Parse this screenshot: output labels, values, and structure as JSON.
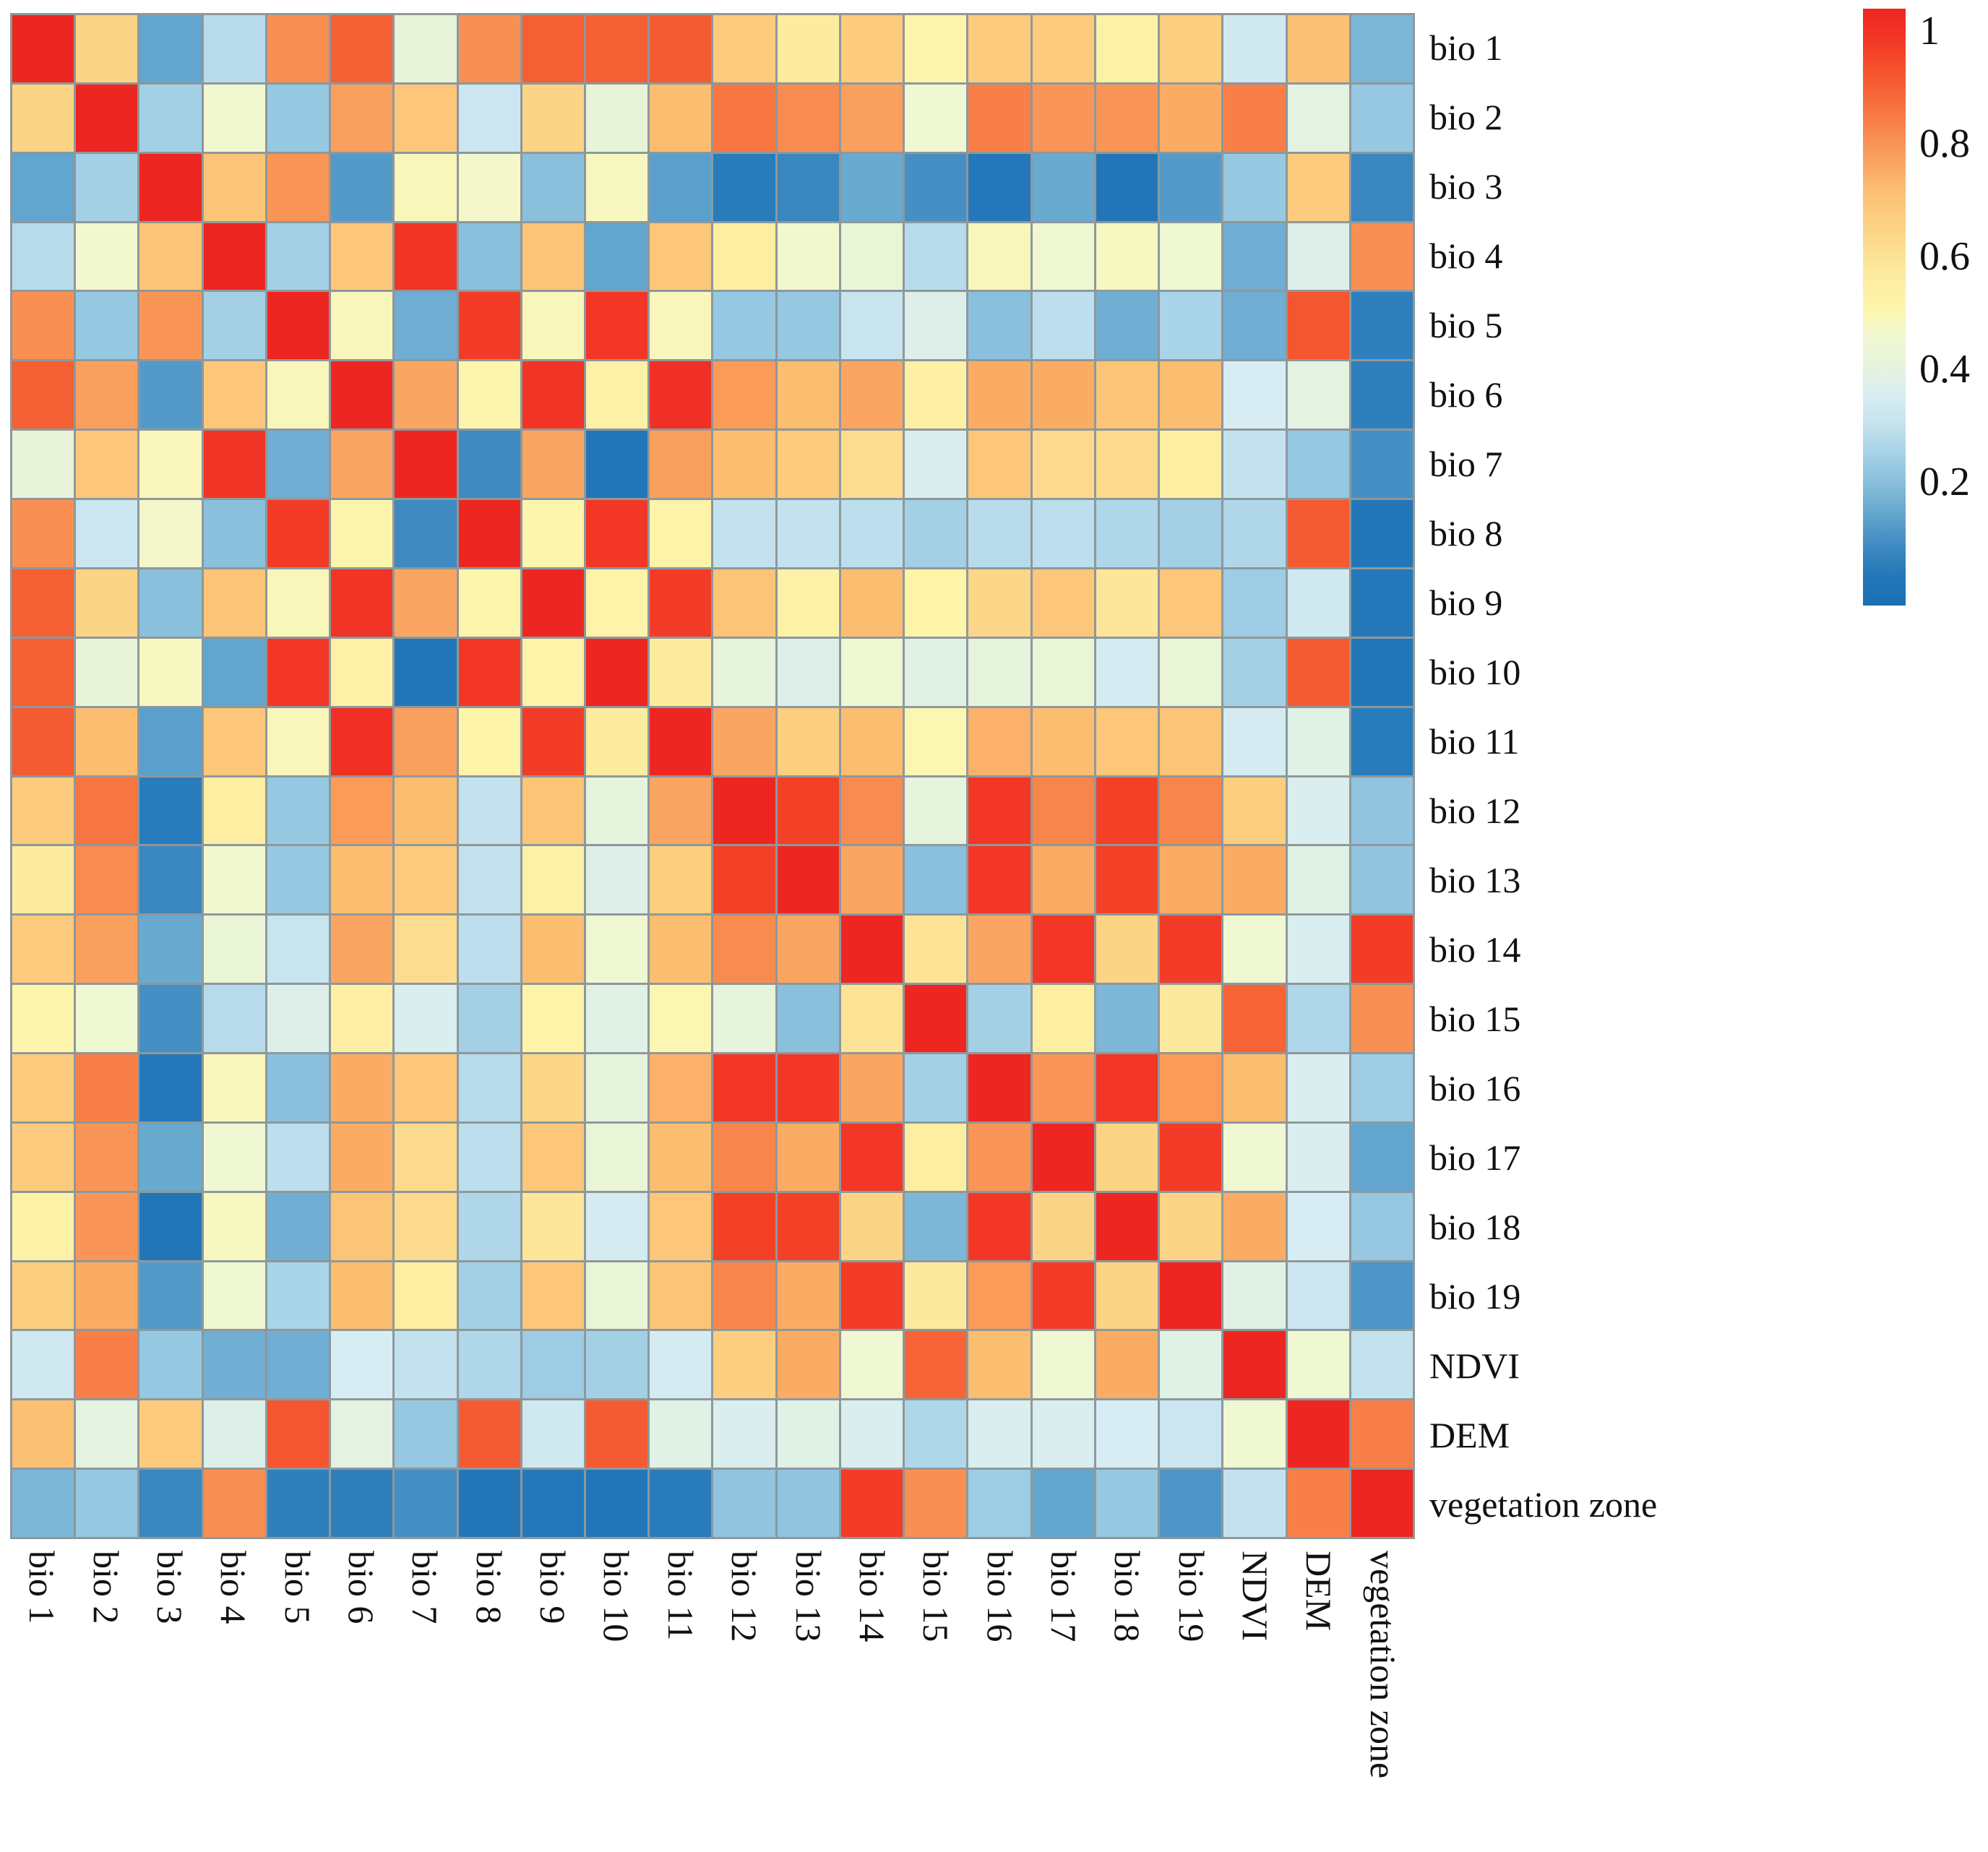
{
  "chart_data": {
    "type": "heatmap",
    "title": "",
    "xlabel": "",
    "ylabel": "",
    "legend_position": "right-colorbar",
    "grid": "cell-borders",
    "grid_line_color": "#8e989b",
    "background_color": "#ffffff",
    "label_color": "#111111",
    "labels": [
      "bio 1",
      "bio 2",
      "bio 3",
      "bio 4",
      "bio 5",
      "bio 6",
      "bio 7",
      "bio 8",
      "bio 9",
      "bio 10",
      "bio 11",
      "bio 12",
      "bio 13",
      "bio 14",
      "bio 15",
      "bio 16",
      "bio 17",
      "bio 18",
      "bio 19",
      "NDVI",
      "DEM",
      "vegetation zone"
    ],
    "matrix": [
      [
        1.0,
        0.63,
        0.15,
        0.28,
        0.78,
        0.87,
        0.41,
        0.78,
        0.87,
        0.87,
        0.88,
        0.66,
        0.55,
        0.66,
        0.5,
        0.66,
        0.66,
        0.52,
        0.65,
        0.33,
        0.69,
        0.19
      ],
      [
        0.63,
        1.0,
        0.25,
        0.45,
        0.23,
        0.75,
        0.67,
        0.32,
        0.63,
        0.41,
        0.7,
        0.83,
        0.79,
        0.75,
        0.44,
        0.81,
        0.77,
        0.77,
        0.73,
        0.81,
        0.39,
        0.23
      ],
      [
        0.15,
        0.25,
        1.0,
        0.68,
        0.77,
        0.13,
        0.48,
        0.46,
        0.21,
        0.47,
        0.14,
        0.06,
        0.09,
        0.16,
        0.11,
        0.05,
        0.16,
        0.04,
        0.13,
        0.23,
        0.66,
        0.09
      ],
      [
        0.28,
        0.45,
        0.68,
        1.0,
        0.25,
        0.67,
        0.96,
        0.21,
        0.68,
        0.15,
        0.67,
        0.54,
        0.45,
        0.42,
        0.28,
        0.48,
        0.44,
        0.47,
        0.44,
        0.17,
        0.37,
        0.78
      ],
      [
        0.78,
        0.23,
        0.77,
        0.25,
        1.0,
        0.48,
        0.17,
        0.94,
        0.48,
        0.95,
        0.48,
        0.23,
        0.23,
        0.31,
        0.37,
        0.21,
        0.29,
        0.17,
        0.26,
        0.17,
        0.89,
        0.07
      ],
      [
        0.87,
        0.75,
        0.13,
        0.67,
        0.48,
        1.0,
        0.74,
        0.5,
        0.96,
        0.52,
        0.97,
        0.76,
        0.7,
        0.74,
        0.53,
        0.73,
        0.73,
        0.68,
        0.7,
        0.35,
        0.39,
        0.07
      ],
      [
        0.41,
        0.67,
        0.48,
        0.96,
        0.17,
        0.74,
        1.0,
        0.1,
        0.74,
        0.04,
        0.75,
        0.7,
        0.66,
        0.6,
        0.36,
        0.67,
        0.61,
        0.61,
        0.54,
        0.3,
        0.23,
        0.11
      ],
      [
        0.78,
        0.32,
        0.46,
        0.21,
        0.94,
        0.5,
        0.1,
        1.0,
        0.5,
        0.95,
        0.51,
        0.3,
        0.3,
        0.29,
        0.25,
        0.28,
        0.29,
        0.27,
        0.25,
        0.27,
        0.88,
        0.04
      ],
      [
        0.87,
        0.63,
        0.21,
        0.68,
        0.48,
        0.96,
        0.74,
        0.5,
        1.0,
        0.51,
        0.94,
        0.68,
        0.52,
        0.7,
        0.51,
        0.62,
        0.67,
        0.57,
        0.67,
        0.24,
        0.33,
        0.05
      ],
      [
        0.87,
        0.41,
        0.47,
        0.15,
        0.95,
        0.52,
        0.04,
        0.95,
        0.51,
        1.0,
        0.55,
        0.4,
        0.37,
        0.44,
        0.38,
        0.4,
        0.42,
        0.34,
        0.42,
        0.25,
        0.88,
        0.04
      ],
      [
        0.88,
        0.7,
        0.14,
        0.67,
        0.48,
        0.97,
        0.75,
        0.51,
        0.94,
        0.55,
        1.0,
        0.74,
        0.65,
        0.7,
        0.49,
        0.72,
        0.7,
        0.67,
        0.68,
        0.34,
        0.38,
        0.06
      ],
      [
        0.66,
        0.83,
        0.06,
        0.54,
        0.23,
        0.76,
        0.7,
        0.3,
        0.68,
        0.4,
        0.74,
        1.0,
        0.93,
        0.79,
        0.4,
        0.95,
        0.8,
        0.93,
        0.8,
        0.65,
        0.36,
        0.22
      ],
      [
        0.55,
        0.79,
        0.09,
        0.45,
        0.23,
        0.7,
        0.66,
        0.3,
        0.52,
        0.37,
        0.65,
        0.93,
        1.0,
        0.74,
        0.21,
        0.95,
        0.73,
        0.93,
        0.73,
        0.73,
        0.38,
        0.22
      ],
      [
        0.66,
        0.75,
        0.16,
        0.42,
        0.31,
        0.74,
        0.6,
        0.29,
        0.7,
        0.44,
        0.7,
        0.79,
        0.74,
        1.0,
        0.58,
        0.74,
        0.95,
        0.63,
        0.94,
        0.44,
        0.36,
        0.94
      ],
      [
        0.5,
        0.44,
        0.11,
        0.28,
        0.37,
        0.53,
        0.36,
        0.25,
        0.51,
        0.38,
        0.49,
        0.4,
        0.21,
        0.58,
        1.0,
        0.25,
        0.54,
        0.19,
        0.56,
        0.86,
        0.27,
        0.78
      ],
      [
        0.66,
        0.81,
        0.05,
        0.48,
        0.21,
        0.73,
        0.67,
        0.28,
        0.62,
        0.4,
        0.72,
        0.95,
        0.95,
        0.74,
        0.25,
        1.0,
        0.77,
        0.95,
        0.76,
        0.7,
        0.36,
        0.24
      ],
      [
        0.66,
        0.77,
        0.16,
        0.44,
        0.29,
        0.73,
        0.61,
        0.29,
        0.67,
        0.42,
        0.7,
        0.8,
        0.73,
        0.95,
        0.54,
        0.77,
        1.0,
        0.63,
        0.94,
        0.44,
        0.36,
        0.15
      ],
      [
        0.52,
        0.77,
        0.04,
        0.47,
        0.17,
        0.68,
        0.61,
        0.27,
        0.57,
        0.34,
        0.67,
        0.93,
        0.93,
        0.63,
        0.19,
        0.95,
        0.63,
        1.0,
        0.63,
        0.73,
        0.35,
        0.23
      ],
      [
        0.65,
        0.73,
        0.13,
        0.44,
        0.26,
        0.7,
        0.54,
        0.25,
        0.67,
        0.42,
        0.68,
        0.8,
        0.73,
        0.94,
        0.56,
        0.76,
        0.94,
        0.63,
        1.0,
        0.38,
        0.32,
        0.12
      ],
      [
        0.33,
        0.81,
        0.23,
        0.17,
        0.17,
        0.35,
        0.3,
        0.27,
        0.24,
        0.25,
        0.34,
        0.65,
        0.73,
        0.44,
        0.86,
        0.7,
        0.44,
        0.73,
        0.38,
        1.0,
        0.44,
        0.3
      ],
      [
        0.69,
        0.39,
        0.66,
        0.37,
        0.89,
        0.39,
        0.23,
        0.88,
        0.33,
        0.88,
        0.38,
        0.36,
        0.38,
        0.36,
        0.27,
        0.36,
        0.36,
        0.35,
        0.32,
        0.44,
        1.0,
        0.81
      ],
      [
        0.19,
        0.23,
        0.09,
        0.78,
        0.07,
        0.07,
        0.11,
        0.04,
        0.05,
        0.04,
        0.06,
        0.22,
        0.22,
        0.94,
        0.78,
        0.24,
        0.15,
        0.23,
        0.12,
        0.3,
        0.81,
        1.0
      ]
    ],
    "value_range": [
      0,
      1
    ],
    "colormap": [
      [
        0.0,
        "#1a6fb5"
      ],
      [
        0.05,
        "#2478b9"
      ],
      [
        0.1,
        "#3f8ac1"
      ],
      [
        0.15,
        "#62a5ce"
      ],
      [
        0.2,
        "#84bcda"
      ],
      [
        0.25,
        "#a4d0e6"
      ],
      [
        0.3,
        "#c3e2ee"
      ],
      [
        0.35,
        "#d8edf3"
      ],
      [
        0.4,
        "#e6f3dd"
      ],
      [
        0.45,
        "#f1f8d0"
      ],
      [
        0.5,
        "#fdf5ab"
      ],
      [
        0.55,
        "#fdeca0"
      ],
      [
        0.6,
        "#fcdd90"
      ],
      [
        0.65,
        "#fcce80"
      ],
      [
        0.7,
        "#fbbd70"
      ],
      [
        0.75,
        "#faa05e"
      ],
      [
        0.8,
        "#f8864c"
      ],
      [
        0.85,
        "#f6693a"
      ],
      [
        0.9,
        "#f4512c"
      ],
      [
        0.95,
        "#f23726"
      ],
      [
        1.0,
        "#ee2621"
      ]
    ],
    "colorbar": {
      "tick_labels": [
        "1",
        "0.8",
        "0.6",
        "0.4",
        "0.2"
      ],
      "tick_values": [
        1.0,
        0.8,
        0.6,
        0.4,
        0.2
      ],
      "top_value": 1.04,
      "bottom_value": -0.02
    }
  }
}
